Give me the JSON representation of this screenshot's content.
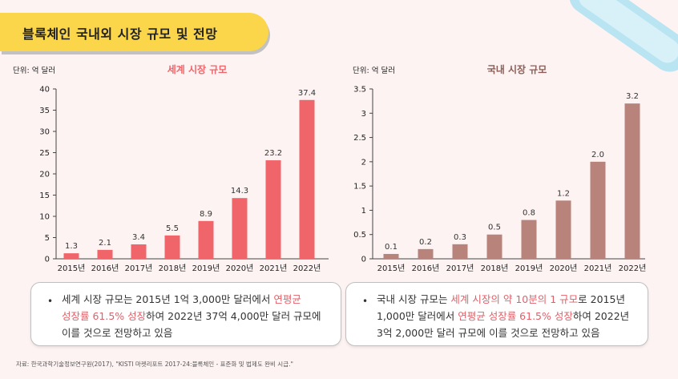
{
  "page": {
    "title": "블록체인 국내외 시장 규모 및 전망",
    "source": "자료: 한국과학기술정보연구원(2017), \"KISTI 마켓리포트 2017-24:블록체인 - 표준화 및 법제도 완비 시급.\""
  },
  "colors": {
    "banner": "#fbd54a",
    "world_bar": "#f06569",
    "domestic_bar": "#b8837a",
    "highlight_text": "#e35f68",
    "background": "#fdf3f3"
  },
  "chart_data": [
    {
      "type": "bar",
      "title": "세계 시장 규모",
      "unit_label": "단위: 억 달러",
      "categories": [
        "2015년",
        "2016년",
        "2017년",
        "2018년",
        "2019년",
        "2020년",
        "2021년",
        "2022년"
      ],
      "values": [
        1.3,
        2.1,
        3.4,
        5.5,
        8.9,
        14.3,
        23.2,
        37.4
      ],
      "data_labels": [
        "1.3",
        "2.1",
        "3.4",
        "5.5",
        "8.9",
        "14.3",
        "23.2",
        "37.4"
      ],
      "yticks": [
        "0",
        "5",
        "10",
        "15",
        "20",
        "25",
        "30",
        "35",
        "40"
      ],
      "ylim": [
        0,
        40
      ],
      "grid": false
    },
    {
      "type": "bar",
      "title": "국내 시장 규모",
      "unit_label": "단위: 억 달러",
      "categories": [
        "2015년",
        "2016년",
        "2017년",
        "2018년",
        "2019년",
        "2020년",
        "2021년",
        "2022년"
      ],
      "values": [
        0.1,
        0.2,
        0.3,
        0.5,
        0.8,
        1.2,
        2.0,
        3.2
      ],
      "data_labels": [
        "0.1",
        "0.2",
        "0.3",
        "0.5",
        "0.8",
        "1.2",
        "2.0",
        "3.2"
      ],
      "yticks": [
        "0",
        "0.5",
        "1",
        "1.5",
        "2",
        "2.5",
        "3",
        "3.5"
      ],
      "ylim": [
        0,
        3.5
      ],
      "grid": false
    }
  ],
  "callouts": {
    "world": {
      "bullet": "•",
      "line1_a": "세계 시장 규모는 2015년 1억 3,000만 달러에서 ",
      "line1_hl": "연평균",
      "line2_hl": "성장률 61.5% 성장",
      "line2_b": "하여 2022년 37억 4,000만 달러 규모에",
      "line3": "이를 것으로 전망하고 있음"
    },
    "domestic": {
      "bullet": "•",
      "line1_a": "국내 시장 규모는 ",
      "line1_hl": "세계 시장의 약 10분의 1 규모",
      "line1_b": "로 2015년",
      "line2_a": "1,000만 달러에서 ",
      "line2_hl": "연평균 성장률 61.5% 성장",
      "line2_b": "하여 2022년",
      "line3": "3억 2,000만 달러 규모에 이를 것으로 전망하고 있음"
    }
  }
}
